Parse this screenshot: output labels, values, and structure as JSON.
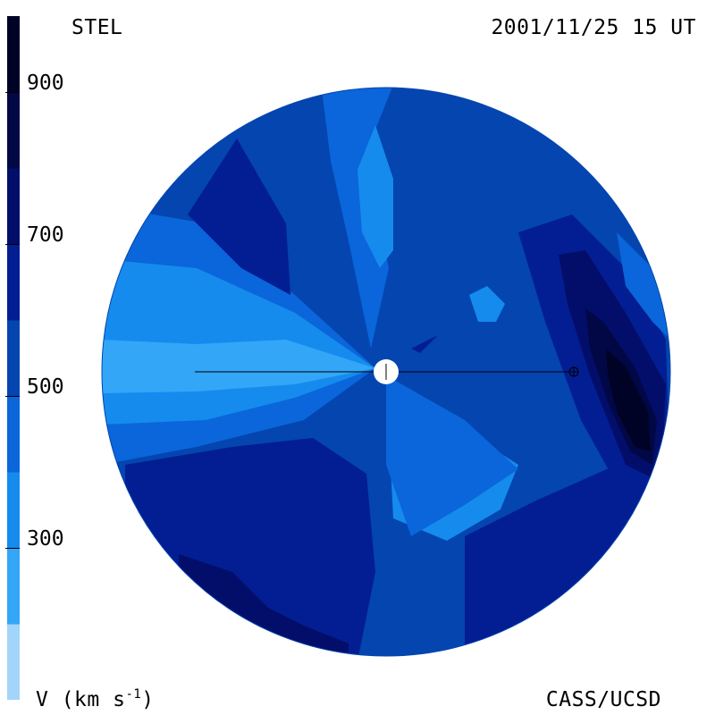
{
  "header": {
    "source": "STEL",
    "timestamp": "2001/11/25 15 UT"
  },
  "footer": {
    "credit": "CASS/UCSD",
    "units_prefix": "V (km s",
    "units_sup": "-1",
    "units_suffix": ")"
  },
  "colorbar": {
    "min": 100,
    "max": 1000,
    "bands": [
      {
        "from": 100,
        "to": 200,
        "color": "#a3d4fa"
      },
      {
        "from": 200,
        "to": 300,
        "color": "#33a6f8"
      },
      {
        "from": 300,
        "to": 400,
        "color": "#158bee"
      },
      {
        "from": 400,
        "to": 500,
        "color": "#0a66da"
      },
      {
        "from": 500,
        "to": 600,
        "color": "#0445b0"
      },
      {
        "from": 600,
        "to": 700,
        "color": "#021e92"
      },
      {
        "from": 700,
        "to": 800,
        "color": "#030e6a"
      },
      {
        "from": 800,
        "to": 900,
        "color": "#020846"
      },
      {
        "from": 900,
        "to": 1000,
        "color": "#000326"
      }
    ],
    "ticks": [
      {
        "value": 300,
        "label": "300"
      },
      {
        "value": 500,
        "label": "500"
      },
      {
        "value": 700,
        "label": "700"
      },
      {
        "value": 900,
        "label": "900"
      }
    ]
  },
  "map": {
    "center_marker": "sun-icon",
    "earth_marker": "earth-icon"
  }
}
